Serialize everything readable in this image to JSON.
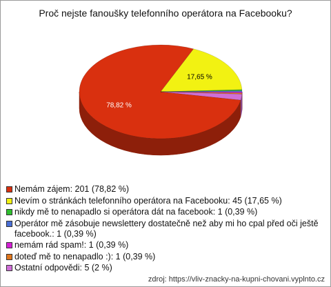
{
  "chart_data": {
    "type": "pie",
    "title": "Proč nejste fanoušky telefonního operátora na Facebooku?",
    "categories": [
      "Nemám zájem: 201 (78,82 %)",
      "Nevím o stránkách telefonního operátora na Facebooku: 45 (17,65 %)",
      "nikdy mě to nenapadlo si operátora dát na facebook: 1 (0,39 %)",
      "Operátor mě zásobuje newslettery dostatečně než aby mi ho cpal před oči ještě facebook.: 1 (0,39 %)",
      "nemám rád spam!: 1 (0,39 %)",
      "doteď mě to nenapadlo :): 1 (0,39 %)",
      "Ostatní odpovědi: 5 (2 %)"
    ],
    "values": [
      78.82,
      17.65,
      0.39,
      0.39,
      0.39,
      0.39,
      2
    ],
    "value_labels": [
      "78,82 %",
      "17,65 %",
      null,
      null,
      null,
      null,
      null
    ],
    "colors": [
      "#d9300f",
      "#f2f212",
      "#2fbf2f",
      "#4a6fd6",
      "#d41fd4",
      "#e0761c",
      "#cf6fd8"
    ],
    "source": "zdroj: https://vliv-znacky-na-kupni-chovani.vyplnto.cz"
  }
}
